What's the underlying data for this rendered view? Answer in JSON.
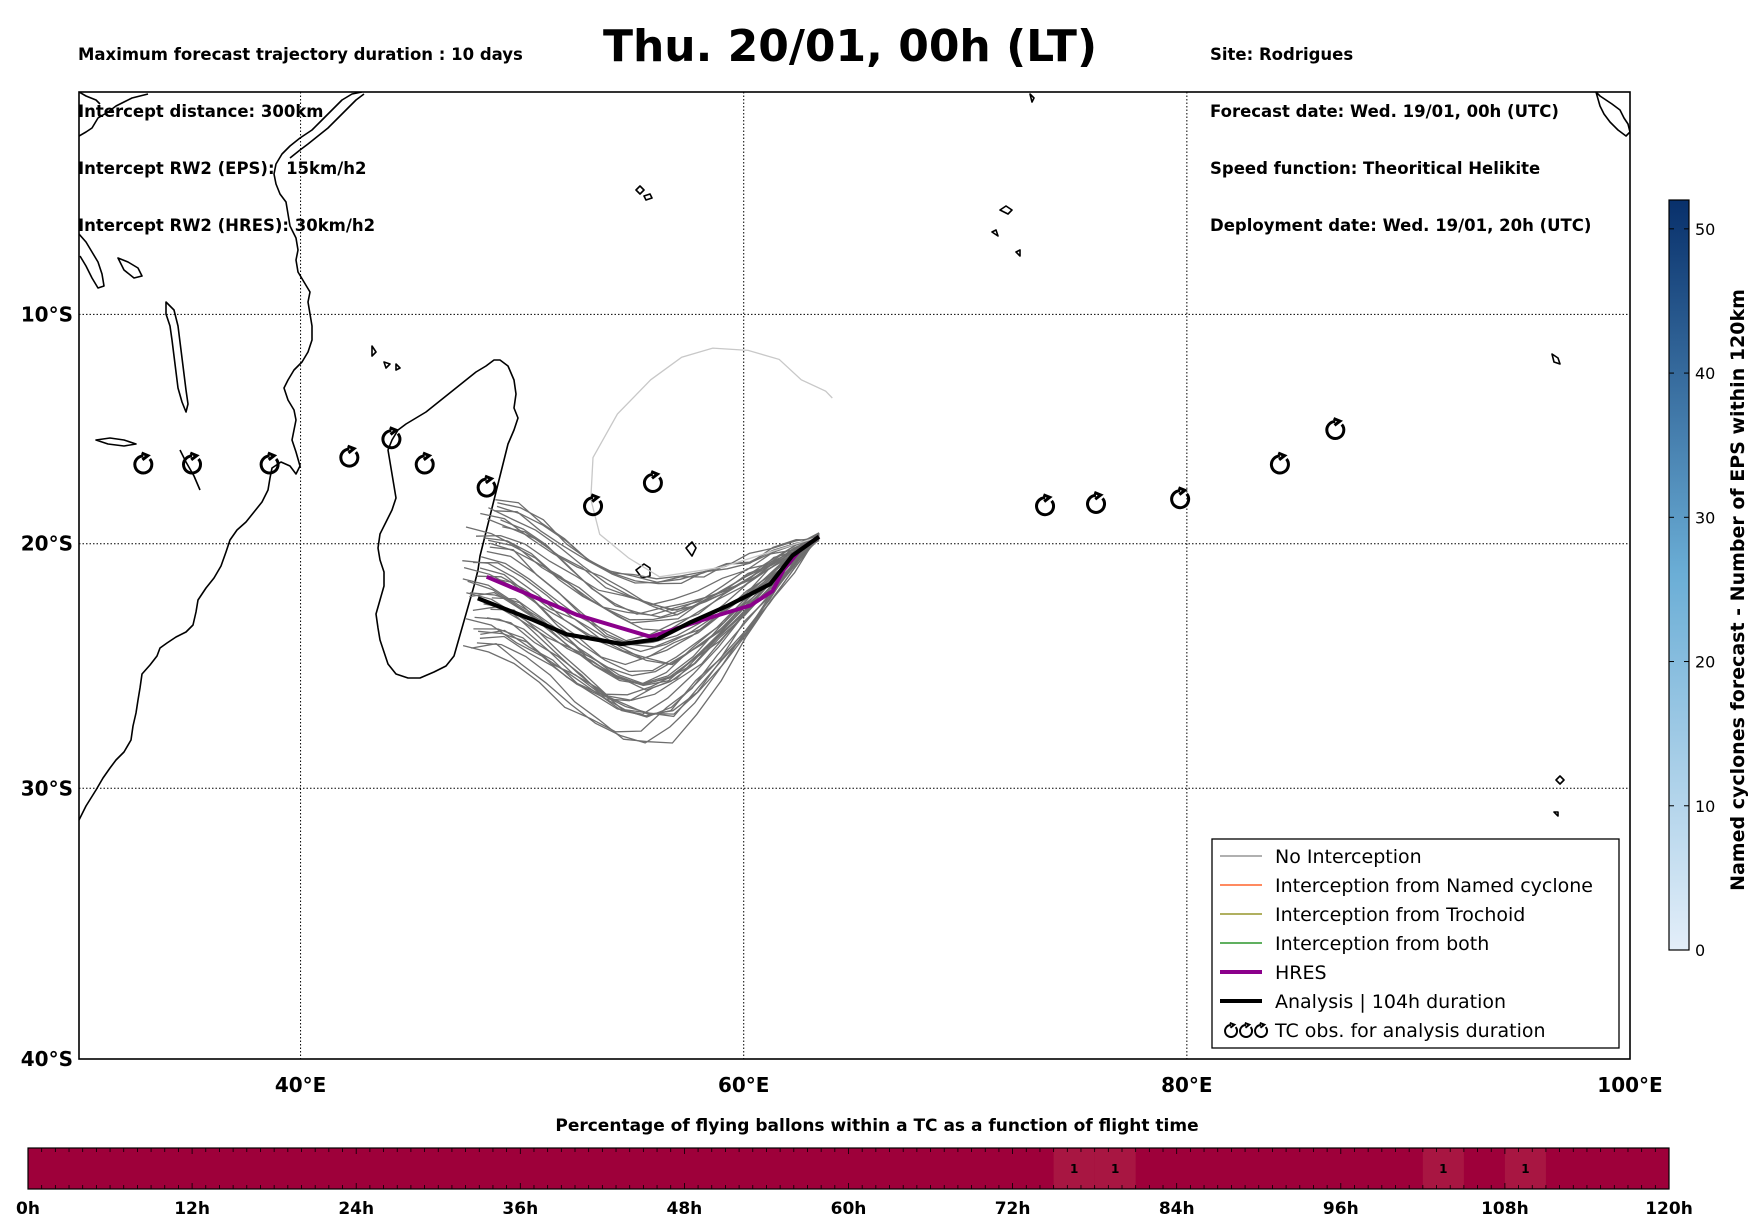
{
  "header": {
    "info_left": [
      "Maximum forecast trajectory duration : 10 days",
      "Intercept distance: 300km",
      "Intercept RW2 (EPS):  15km/h2",
      "Intercept RW2 (HRES): 30km/h2"
    ],
    "title": "Thu. 20/01, 00h (LT)",
    "info_right": [
      "Site: Rodrigues",
      "Forecast date: Wed. 19/01, 00h (UTC)",
      "Speed function: Theoritical Helikite",
      "Deployment date: Wed. 19/01, 20h (UTC)"
    ]
  },
  "map": {
    "lon_range": [
      30,
      100
    ],
    "lat_range": [
      0,
      -40
    ],
    "grid_lons": [
      40,
      60,
      80
    ],
    "grid_lats": [
      -10,
      -20,
      -30
    ],
    "lat_labels": [
      {
        "lat": -10,
        "text": "10°S"
      },
      {
        "lat": -20,
        "text": "20°S"
      },
      {
        "lat": -30,
        "text": "30°S"
      },
      {
        "lat": -40,
        "text": "40°S"
      }
    ],
    "lon_labels": [
      {
        "lon": 40,
        "text": "40°E"
      },
      {
        "lon": 60,
        "text": "60°E"
      },
      {
        "lon": 80,
        "text": "80°E"
      },
      {
        "lon": 100,
        "text": "100°E"
      }
    ],
    "launch_site": {
      "lon": 63.4,
      "lat": -19.7
    },
    "tc_observations": [
      {
        "lon": 32.9,
        "lat": -16.6
      },
      {
        "lon": 35.1,
        "lat": -16.6
      },
      {
        "lon": 38.6,
        "lat": -16.6
      },
      {
        "lon": 42.2,
        "lat": -16.3
      },
      {
        "lon": 44.1,
        "lat": -15.5
      },
      {
        "lon": 45.6,
        "lat": -16.6
      },
      {
        "lon": 48.4,
        "lat": -17.6
      },
      {
        "lon": 53.2,
        "lat": -18.4
      },
      {
        "lon": 55.9,
        "lat": -17.4
      },
      {
        "lon": 73.6,
        "lat": -18.4
      },
      {
        "lon": 75.9,
        "lat": -18.3
      },
      {
        "lon": 79.7,
        "lat": -18.1
      },
      {
        "lon": 84.2,
        "lat": -16.6
      },
      {
        "lon": 86.7,
        "lat": -15.1
      }
    ],
    "hres_track": [
      {
        "lon": 63.4,
        "lat": -19.7
      },
      {
        "lon": 62.5,
        "lat": -20.3
      },
      {
        "lon": 61.8,
        "lat": -21.1
      },
      {
        "lon": 61.3,
        "lat": -22.0
      },
      {
        "lon": 60.3,
        "lat": -22.6
      },
      {
        "lon": 58.5,
        "lat": -23.1
      },
      {
        "lon": 55.8,
        "lat": -23.9
      },
      {
        "lon": 52.5,
        "lat": -23.0
      },
      {
        "lon": 48.4,
        "lat": -21.4
      }
    ],
    "analysis_track": [
      {
        "lon": 63.4,
        "lat": -19.7
      },
      {
        "lon": 62.2,
        "lat": -20.5
      },
      {
        "lon": 61.2,
        "lat": -21.7
      },
      {
        "lon": 59.3,
        "lat": -22.6
      },
      {
        "lon": 57.6,
        "lat": -23.3
      },
      {
        "lon": 56.1,
        "lat": -24.0
      },
      {
        "lon": 54.5,
        "lat": -24.2
      },
      {
        "lon": 52.0,
        "lat": -23.8
      },
      {
        "lon": 50.5,
        "lat": -23.2
      },
      {
        "lon": 48.0,
        "lat": -22.3
      }
    ],
    "long_track": [
      {
        "lon": 63.4,
        "lat": -19.7
      },
      {
        "lon": 59.0,
        "lat": -21.0
      },
      {
        "lon": 56.2,
        "lat": -21.4
      },
      {
        "lon": 54.8,
        "lat": -20.6
      },
      {
        "lon": 53.5,
        "lat": -19.6
      },
      {
        "lon": 53.1,
        "lat": -18.1
      },
      {
        "lon": 53.2,
        "lat": -16.3
      },
      {
        "lon": 54.3,
        "lat": -14.4
      },
      {
        "lon": 55.8,
        "lat": -12.9
      },
      {
        "lon": 57.2,
        "lat": -11.9
      },
      {
        "lon": 58.6,
        "lat": -11.5
      },
      {
        "lon": 60.2,
        "lat": -11.6
      },
      {
        "lon": 61.6,
        "lat": -12.0
      },
      {
        "lon": 62.6,
        "lat": -12.9
      },
      {
        "lon": 63.7,
        "lat": -13.4
      },
      {
        "lon": 64.0,
        "lat": -13.7
      }
    ]
  },
  "legend": {
    "items": [
      {
        "label": "No Interception",
        "color": "#808080",
        "width": 1.3
      },
      {
        "label": "Interception from Named cyclone",
        "color": "#ff4500",
        "width": 1.3
      },
      {
        "label": "Interception from Trochoid",
        "color": "#808000",
        "width": 1.3
      },
      {
        "label": "Interception from both",
        "color": "#008000",
        "width": 1.3
      },
      {
        "label": "HRES",
        "color": "#8b008b",
        "width": 4
      },
      {
        "label": "Analysis | 104h duration",
        "color": "#000000",
        "width": 4
      },
      {
        "label": "TC obs. for analysis duration",
        "color": "#000000",
        "symbol": "tc-icons"
      }
    ]
  },
  "colorbar": {
    "label": "Named cyclones forecast - Number of EPS within 120km",
    "range": [
      0,
      52
    ],
    "ticks": [
      0,
      10,
      20,
      30,
      40,
      50
    ],
    "low_color": "#e3eef9",
    "high_color": "#08306b"
  },
  "timeline": {
    "title": "Percentage of flying ballons within a TC as a function of flight time",
    "range_h": [
      0,
      120
    ],
    "bar_color": "#9e003a",
    "highlight_color": "#a81642",
    "tick_labels": [
      "0h",
      "12h",
      "24h",
      "36h",
      "48h",
      "60h",
      "72h",
      "84h",
      "96h",
      "108h",
      "120h"
    ],
    "cells": [
      {
        "start_h": 75,
        "end_h": 78,
        "value": "1"
      },
      {
        "start_h": 78,
        "end_h": 81,
        "value": "1"
      },
      {
        "start_h": 102,
        "end_h": 105,
        "value": "1"
      },
      {
        "start_h": 108,
        "end_h": 111,
        "value": "1"
      }
    ]
  }
}
